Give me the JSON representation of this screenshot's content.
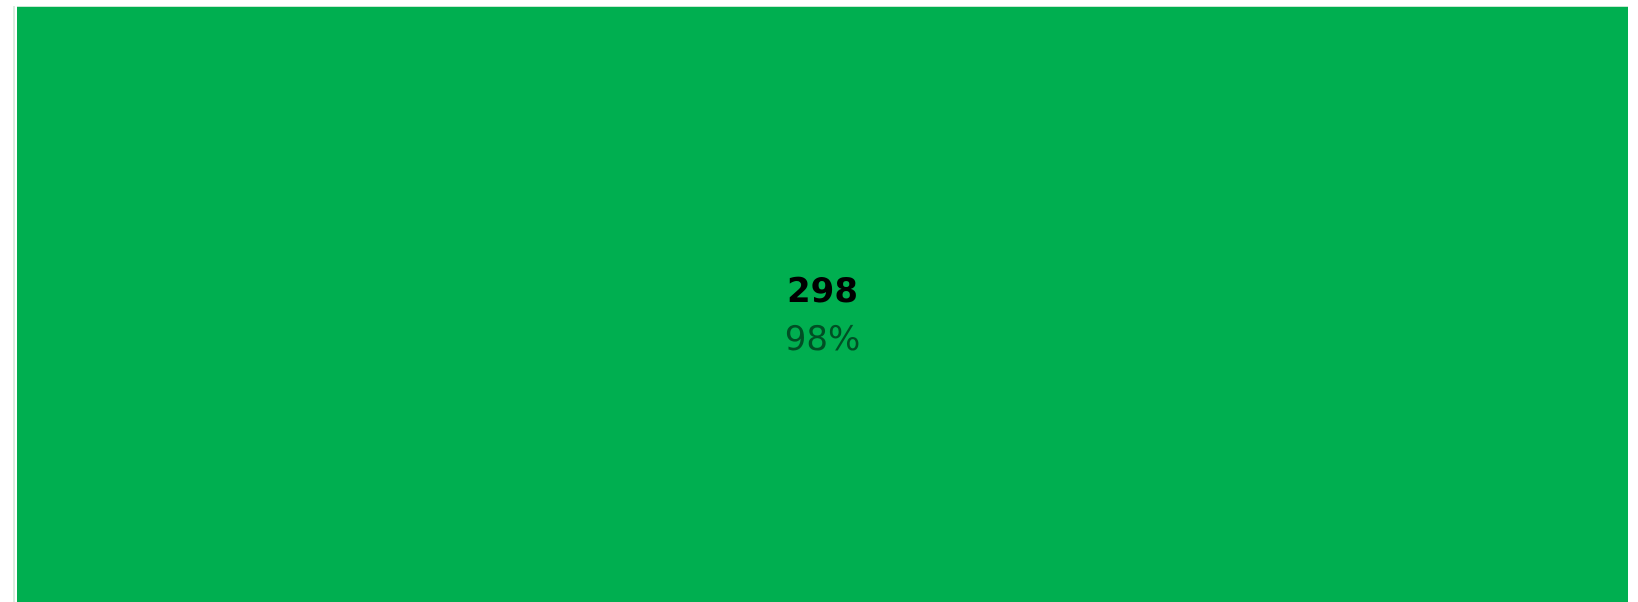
{
  "segment": {
    "count": "298",
    "percent": "98%"
  }
}
